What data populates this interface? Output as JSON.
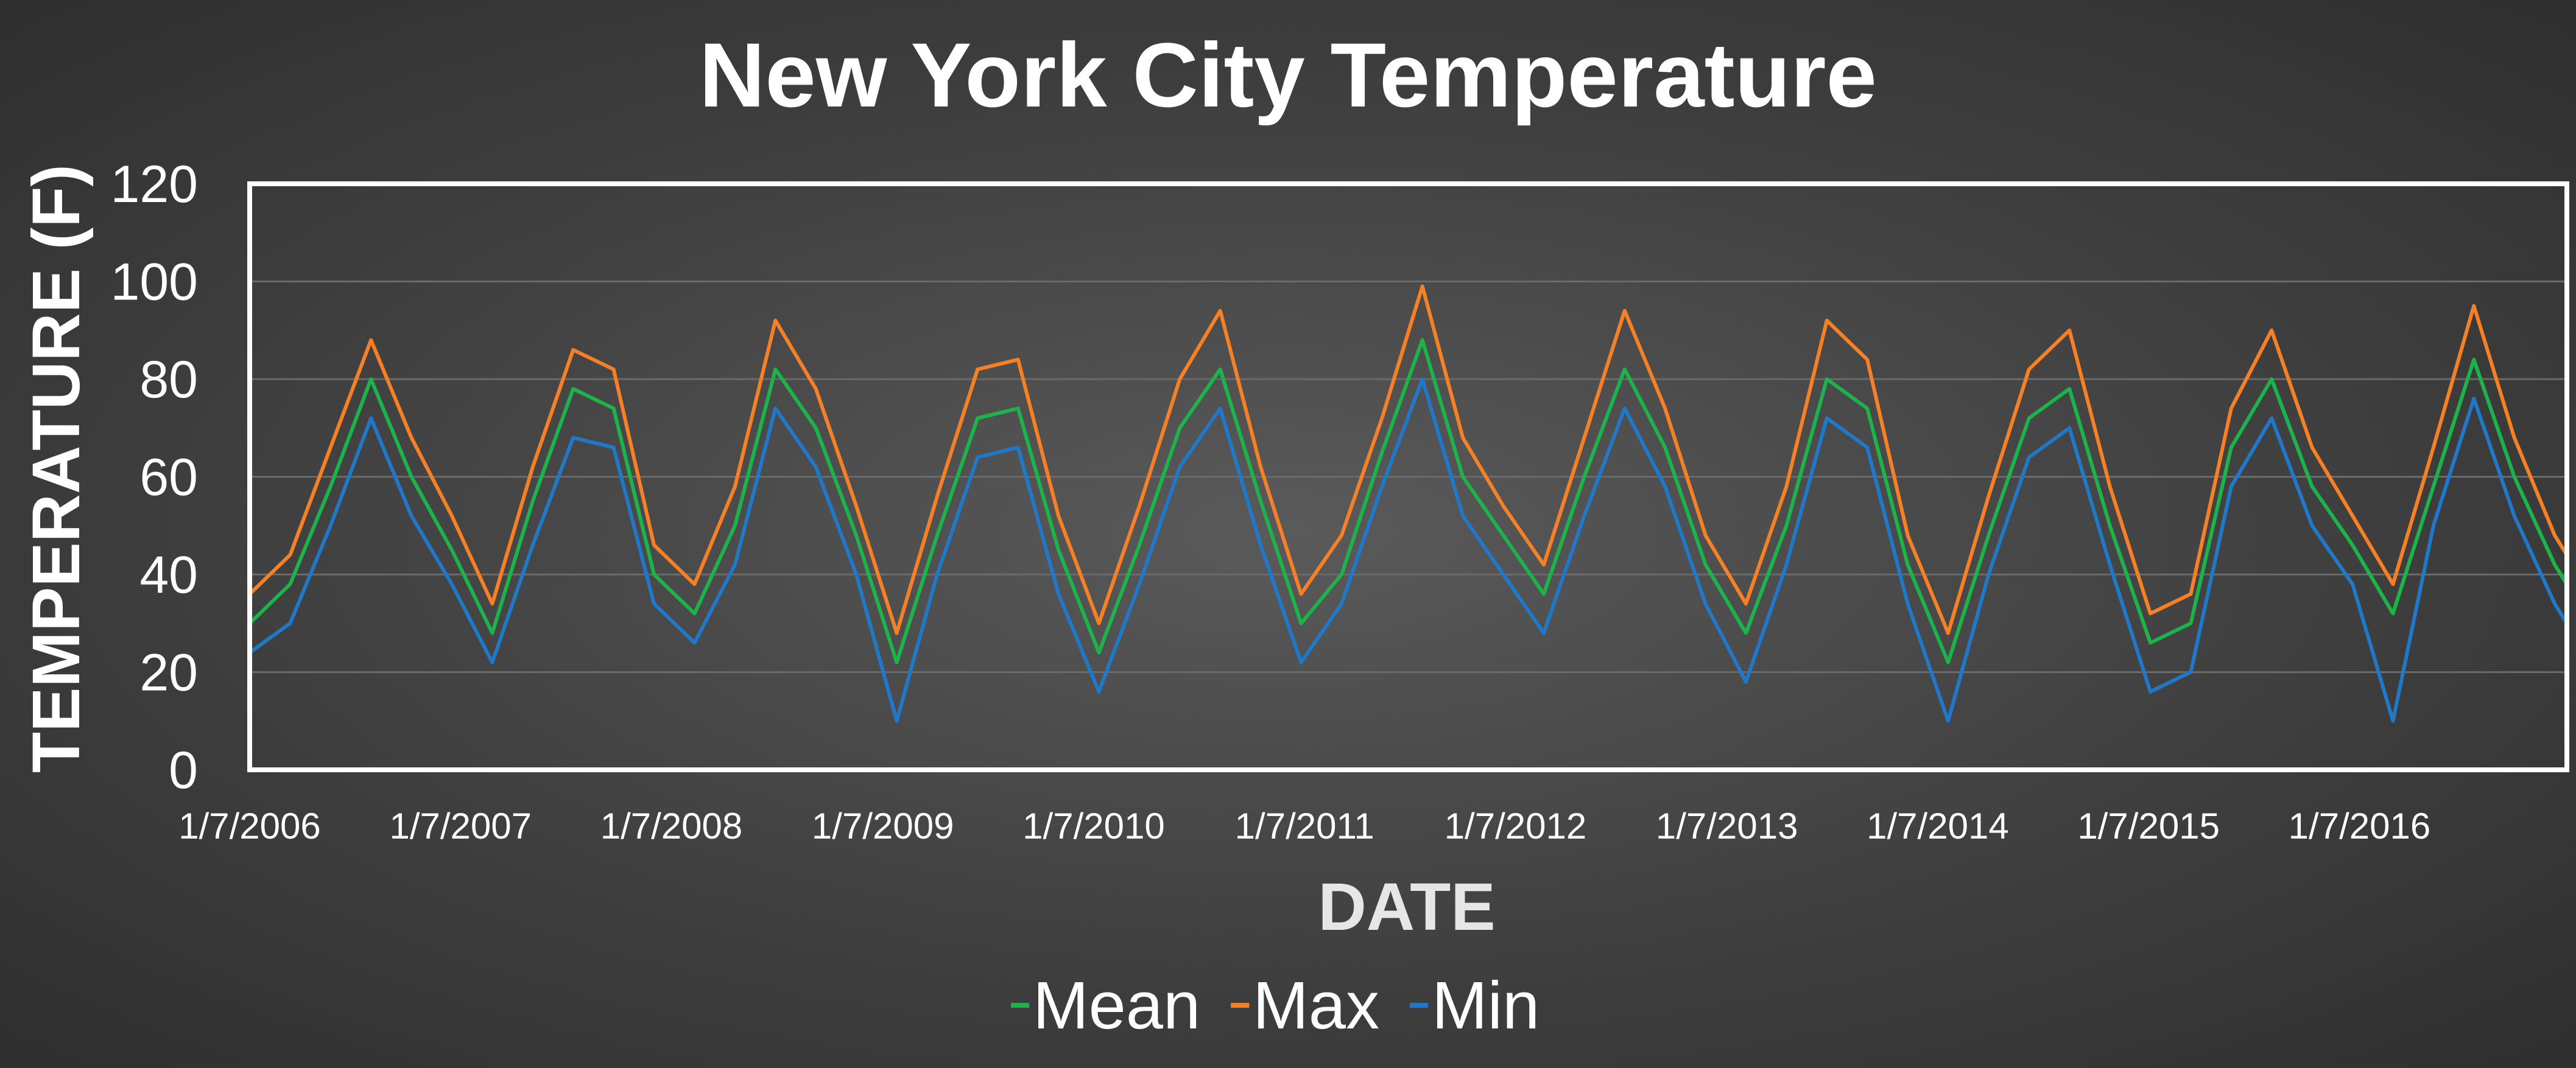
{
  "chart_data": {
    "type": "line",
    "title": "New York City Temperature",
    "xlabel": "DATE",
    "ylabel": "TEMPERATURE (F)",
    "ylim": [
      0,
      120
    ],
    "yticks": [
      0,
      20,
      40,
      60,
      80,
      100,
      120
    ],
    "xlim": [
      "2006-01-07",
      "2016-12-31"
    ],
    "xtick_labels": [
      "1/7/2006",
      "1/7/2007",
      "1/7/2008",
      "1/7/2009",
      "1/7/2010",
      "1/7/2011",
      "1/7/2012",
      "1/7/2013",
      "1/7/2014",
      "1/7/2015",
      "1/7/2016"
    ],
    "xtick_dates": [
      "2006-01-07",
      "2007-01-07",
      "2008-01-07",
      "2009-01-07",
      "2010-01-07",
      "2011-01-07",
      "2012-01-07",
      "2013-01-07",
      "2014-01-07",
      "2015-01-07",
      "2016-01-07"
    ],
    "grid": true,
    "legend_position": "bottom",
    "x": [
      "2006-01-07",
      "2006-03-18",
      "2006-05-27",
      "2006-08-05",
      "2006-10-14",
      "2006-12-23",
      "2007-03-03",
      "2007-05-12",
      "2007-07-21",
      "2007-09-29",
      "2007-12-08",
      "2008-02-16",
      "2008-04-26",
      "2008-07-05",
      "2008-09-13",
      "2008-11-22",
      "2009-01-31",
      "2009-04-11",
      "2009-06-20",
      "2009-08-29",
      "2009-11-07",
      "2010-01-16",
      "2010-03-27",
      "2010-06-05",
      "2010-08-14",
      "2010-10-23",
      "2011-01-01",
      "2011-03-12",
      "2011-05-21",
      "2011-07-30",
      "2011-10-08",
      "2011-12-17",
      "2012-02-25",
      "2012-05-05",
      "2012-07-14",
      "2012-09-22",
      "2012-12-01",
      "2013-02-09",
      "2013-04-20",
      "2013-06-29",
      "2013-09-07",
      "2013-11-16",
      "2014-01-25",
      "2014-04-05",
      "2014-06-14",
      "2014-08-23",
      "2014-11-01",
      "2015-01-10",
      "2015-03-21",
      "2015-05-30",
      "2015-08-08",
      "2015-10-17",
      "2015-12-26",
      "2016-03-05",
      "2016-05-14",
      "2016-07-23",
      "2016-10-01",
      "2016-12-10",
      "2016-12-31"
    ],
    "series": [
      {
        "name": "Mean",
        "color": "#1cb34a",
        "values": [
          30,
          38,
          58,
          80,
          60,
          45,
          28,
          55,
          78,
          74,
          40,
          32,
          50,
          82,
          70,
          48,
          22,
          48,
          72,
          74,
          45,
          24,
          46,
          70,
          82,
          55,
          30,
          40,
          65,
          88,
          60,
          48,
          36,
          60,
          82,
          66,
          42,
          28,
          50,
          80,
          74,
          42,
          22,
          48,
          72,
          78,
          50,
          26,
          30,
          66,
          80,
          58,
          46,
          32,
          58,
          84,
          60,
          42,
          38
        ]
      },
      {
        "name": "Max",
        "color": "#f58025",
        "values": [
          36,
          44,
          66,
          88,
          68,
          52,
          34,
          62,
          86,
          82,
          46,
          38,
          58,
          92,
          78,
          54,
          28,
          56,
          82,
          84,
          52,
          30,
          54,
          80,
          94,
          62,
          36,
          48,
          72,
          99,
          68,
          54,
          42,
          68,
          94,
          74,
          48,
          34,
          58,
          92,
          84,
          48,
          28,
          56,
          82,
          90,
          58,
          32,
          36,
          74,
          90,
          66,
          52,
          38,
          66,
          95,
          68,
          48,
          44
        ]
      },
      {
        "name": "Min",
        "color": "#1f78c8",
        "values": [
          24,
          30,
          50,
          72,
          52,
          38,
          22,
          46,
          68,
          66,
          34,
          26,
          42,
          74,
          62,
          40,
          10,
          40,
          64,
          66,
          36,
          16,
          38,
          62,
          74,
          46,
          22,
          34,
          58,
          80,
          52,
          40,
          28,
          52,
          74,
          58,
          34,
          18,
          42,
          72,
          66,
          34,
          10,
          40,
          64,
          70,
          42,
          16,
          20,
          58,
          72,
          50,
          38,
          10,
          50,
          76,
          52,
          34,
          30
        ]
      }
    ]
  }
}
